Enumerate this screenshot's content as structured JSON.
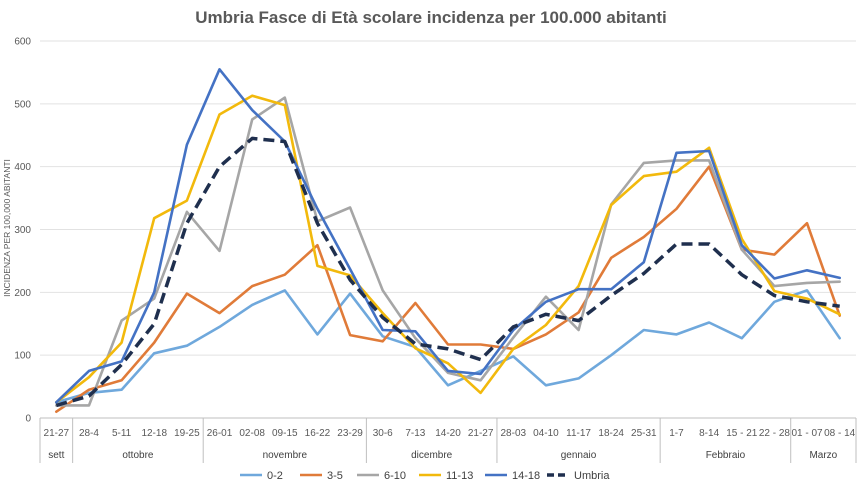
{
  "chart_data": {
    "type": "line",
    "title": "Umbria Fasce di Età scolare incidenza per 100.000 abitanti",
    "ylabel": "INCIDENZA PER 100,000 ABITANTI",
    "xlabel": "",
    "ylim": [
      0,
      600
    ],
    "yticks": [
      0,
      100,
      200,
      300,
      400,
      500,
      600
    ],
    "grid": true,
    "legend_position": "bottom",
    "categories": [
      "21-27",
      "28-4",
      "5-11",
      "12-18",
      "19-25",
      "26-01",
      "02-08",
      "09-15",
      "16-22",
      "23-29",
      "30-6",
      "7-13",
      "14-20",
      "21-27",
      "28-03",
      "04-10",
      "11-17",
      "18-24",
      "25-31",
      "1-7",
      "8-14",
      "15 - 21",
      "22 - 28",
      "01 - 07",
      "08 - 14"
    ],
    "month_groups": [
      {
        "label": "sett",
        "span": 1
      },
      {
        "label": "ottobre",
        "span": 4
      },
      {
        "label": "novembre",
        "span": 5
      },
      {
        "label": "dicembre",
        "span": 4
      },
      {
        "label": "gennaio",
        "span": 5
      },
      {
        "label": "Febbraio",
        "span": 4
      },
      {
        "label": "Marzo",
        "span": 2
      }
    ],
    "series": [
      {
        "name": "0-2",
        "color": "#6fa8dc",
        "dashed": false,
        "values": [
          25,
          40,
          45,
          103,
          115,
          145,
          180,
          203,
          133,
          198,
          130,
          113,
          52,
          75,
          98,
          52,
          63,
          100,
          140,
          133,
          152,
          127,
          185,
          203,
          127
        ]
      },
      {
        "name": "3-5",
        "color": "#e07b39",
        "dashed": false,
        "values": [
          10,
          45,
          60,
          120,
          198,
          167,
          210,
          228,
          275,
          132,
          122,
          183,
          117,
          117,
          110,
          133,
          168,
          255,
          288,
          333,
          400,
          268,
          260,
          310,
          163
        ]
      },
      {
        "name": "6-10",
        "color": "#a6a6a6",
        "dashed": false,
        "values": [
          20,
          20,
          155,
          190,
          328,
          266,
          475,
          510,
          313,
          335,
          203,
          127,
          72,
          60,
          128,
          193,
          140,
          340,
          406,
          410,
          410,
          268,
          210,
          215,
          217
        ]
      },
      {
        "name": "11-13",
        "color": "#f2b90c",
        "dashed": false,
        "values": [
          25,
          65,
          120,
          318,
          346,
          483,
          513,
          498,
          242,
          227,
          167,
          111,
          87,
          40,
          110,
          148,
          210,
          339,
          385,
          392,
          430,
          285,
          202,
          190,
          165
        ]
      },
      {
        "name": "14-18",
        "color": "#4472c4",
        "dashed": false,
        "values": [
          25,
          75,
          90,
          200,
          435,
          555,
          490,
          440,
          333,
          237,
          140,
          138,
          75,
          70,
          140,
          185,
          205,
          205,
          248,
          422,
          425,
          275,
          222,
          235,
          223
        ]
      },
      {
        "name": "Umbria",
        "color": "#1f2f4e",
        "dashed": true,
        "values": [
          20,
          35,
          85,
          150,
          310,
          400,
          445,
          440,
          310,
          220,
          160,
          118,
          110,
          93,
          145,
          165,
          155,
          195,
          230,
          277,
          277,
          228,
          195,
          185,
          178
        ]
      }
    ]
  }
}
